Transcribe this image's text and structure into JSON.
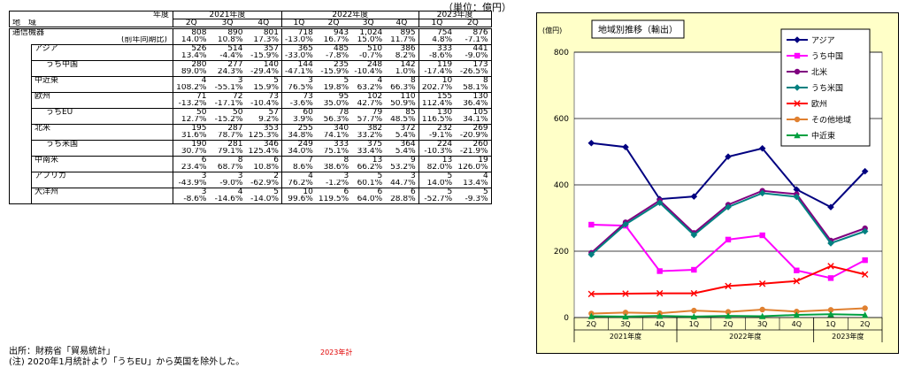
{
  "table": {
    "unit": "（単位：億円）",
    "header": {
      "nendo_label": "年度",
      "region_label": "地　域",
      "years": [
        "2021年度",
        "2022年度",
        "2023年度"
      ],
      "quarters": [
        "2Q",
        "3Q",
        "4Q",
        "1Q",
        "2Q",
        "3Q",
        "4Q",
        "1Q",
        "2Q"
      ]
    },
    "rows": [
      {
        "label": "通信機器",
        "values": [
          "808",
          "890",
          "801",
          "718",
          "943",
          "1,024",
          "895",
          "754",
          "876"
        ],
        "sublabel": "(前年同期比)",
        "ratios": [
          "14.0%",
          "10.8%",
          "17.3%",
          "-13.0%",
          "16.7%",
          "15.0%",
          "11.7%",
          "4.8%",
          "-7.1%"
        ]
      },
      {
        "label": "アジア",
        "values": [
          "526",
          "514",
          "357",
          "365",
          "485",
          "510",
          "386",
          "333",
          "441"
        ],
        "ratios": [
          "13.4%",
          "-4.4%",
          "-15.9%",
          "-33.0%",
          "-7.8%",
          "-0.7%",
          "8.2%",
          "-8.6%",
          "-9.0%"
        ]
      },
      {
        "label": "うち中国",
        "values": [
          "280",
          "277",
          "140",
          "144",
          "235",
          "248",
          "142",
          "119",
          "173"
        ],
        "ratios": [
          "89.0%",
          "24.3%",
          "-29.4%",
          "-47.1%",
          "-15.9%",
          "-10.4%",
          "1.0%",
          "-17.4%",
          "-26.5%"
        ]
      },
      {
        "label": "中近東",
        "values": [
          "4",
          "3",
          "5",
          "3",
          "5",
          "4",
          "8",
          "10",
          "8"
        ],
        "ratios": [
          "108.2%",
          "-55.1%",
          "15.9%",
          "76.5%",
          "19.8%",
          "63.2%",
          "66.3%",
          "202.7%",
          "58.1%"
        ]
      },
      {
        "label": "欧州",
        "values": [
          "71",
          "72",
          "73",
          "73",
          "95",
          "102",
          "110",
          "155",
          "130"
        ],
        "ratios": [
          "-13.2%",
          "-17.1%",
          "-10.4%",
          "-3.6%",
          "35.0%",
          "42.7%",
          "50.9%",
          "112.4%",
          "36.4%"
        ]
      },
      {
        "label": "うちEU",
        "values": [
          "50",
          "50",
          "57",
          "60",
          "78",
          "79",
          "85",
          "130",
          "105"
        ],
        "ratios": [
          "12.7%",
          "-15.2%",
          "9.2%",
          "3.9%",
          "56.3%",
          "57.7%",
          "48.5%",
          "116.5%",
          "34.1%"
        ]
      },
      {
        "label": "北米",
        "values": [
          "195",
          "287",
          "353",
          "255",
          "340",
          "382",
          "372",
          "232",
          "269"
        ],
        "ratios": [
          "31.6%",
          "78.7%",
          "125.3%",
          "34.8%",
          "74.1%",
          "33.2%",
          "5.4%",
          "-9.1%",
          "-20.9%"
        ]
      },
      {
        "label": "うち米国",
        "values": [
          "190",
          "281",
          "346",
          "249",
          "333",
          "375",
          "364",
          "224",
          "260"
        ],
        "ratios": [
          "30.7%",
          "79.1%",
          "125.4%",
          "34.0%",
          "75.1%",
          "33.4%",
          "5.4%",
          "-10.3%",
          "-21.9%"
        ]
      },
      {
        "label": "中南米",
        "values": [
          "6",
          "8",
          "6",
          "7",
          "8",
          "13",
          "9",
          "13",
          "19"
        ],
        "ratios": [
          "23.4%",
          "68.7%",
          "10.8%",
          "8.6%",
          "38.6%",
          "66.2%",
          "53.2%",
          "82.0%",
          "126.0%"
        ]
      },
      {
        "label": "アフリカ",
        "values": [
          "3",
          "3",
          "2",
          "4",
          "3",
          "5",
          "3",
          "5",
          "4"
        ],
        "ratios": [
          "-43.9%",
          "-9.0%",
          "-62.9%",
          "76.2%",
          "-1.2%",
          "60.1%",
          "44.7%",
          "14.0%",
          "13.4%"
        ]
      },
      {
        "label": "大洋州",
        "values": [
          "3",
          "4",
          "5",
          "10",
          "6",
          "6",
          "6",
          "5",
          "5"
        ],
        "ratios": [
          "-8.6%",
          "-14.6%",
          "-14.0%",
          "99.6%",
          "119.5%",
          "64.0%",
          "28.8%",
          "-52.7%",
          "-9.3%"
        ]
      }
    ],
    "source": "出所：財務省「貿易統計」",
    "note": "(注) 2020年1月統計より「うちEU」から英国を除外した。",
    "calc_note": "2023年計"
  },
  "chart_data": {
    "type": "line",
    "title": "地域別推移（輸出）",
    "ylabel": "(億円)",
    "ylim": [
      0,
      800
    ],
    "yticks": [
      0,
      200,
      400,
      600,
      800
    ],
    "categories": [
      "2Q",
      "3Q",
      "4Q",
      "1Q",
      "2Q",
      "3Q",
      "4Q",
      "1Q",
      "2Q"
    ],
    "year_groups": [
      {
        "label": "2021年度",
        "count": 3
      },
      {
        "label": "2022年度",
        "count": 4
      },
      {
        "label": "2023年度",
        "count": 2
      }
    ],
    "grid": true,
    "legend_position": "top-right",
    "series": [
      {
        "name": "アジア",
        "color": "#000080",
        "marker": "diamond",
        "values": [
          526,
          514,
          357,
          365,
          485,
          510,
          386,
          333,
          441
        ]
      },
      {
        "name": "うち中国",
        "color": "#ff00ff",
        "marker": "square",
        "values": [
          280,
          277,
          140,
          144,
          235,
          248,
          142,
          119,
          173
        ]
      },
      {
        "name": "北米",
        "color": "#800080",
        "marker": "circle",
        "values": [
          195,
          287,
          353,
          255,
          340,
          382,
          372,
          232,
          269
        ]
      },
      {
        "name": "うち米国",
        "color": "#008080",
        "marker": "diamond",
        "values": [
          190,
          281,
          346,
          249,
          333,
          375,
          364,
          224,
          260
        ]
      },
      {
        "name": "欧州",
        "color": "#ff0000",
        "marker": "x",
        "values": [
          71,
          72,
          73,
          73,
          95,
          102,
          110,
          155,
          130
        ]
      },
      {
        "name": "その他地域",
        "color": "#e08030",
        "marker": "circle",
        "values": [
          12,
          15,
          13,
          21,
          17,
          24,
          18,
          23,
          28
        ]
      },
      {
        "name": "中近東",
        "color": "#00a040",
        "marker": "triangle",
        "values": [
          4,
          3,
          5,
          3,
          5,
          4,
          8,
          10,
          8
        ]
      }
    ]
  }
}
